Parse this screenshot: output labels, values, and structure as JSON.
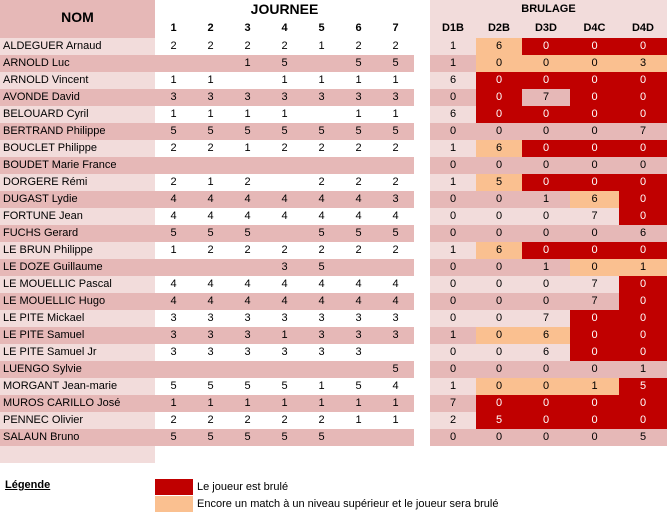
{
  "header": {
    "nom": "NOM",
    "journee": "JOURNEE",
    "brulage": "BRULAGE",
    "journee_cols": [
      "1",
      "2",
      "3",
      "4",
      "5",
      "6",
      "7"
    ],
    "brulage_cols": [
      "D1B",
      "D2B",
      "D3D",
      "D4C",
      "D4D"
    ]
  },
  "players": [
    {
      "name": "ALDEGUER Arnaud",
      "j": [
        "2",
        "2",
        "2",
        "2",
        "1",
        "2",
        "2"
      ],
      "b": [
        "1",
        "6",
        "0",
        "0",
        "0"
      ],
      "s": [
        "",
        "w",
        "b",
        "b",
        "b"
      ]
    },
    {
      "name": "ARNOLD Luc",
      "j": [
        "",
        "",
        "1",
        "5",
        "",
        "5",
        "5"
      ],
      "b": [
        "1",
        "0",
        "0",
        "0",
        "3"
      ],
      "s": [
        "",
        "w",
        "w",
        "w",
        "w"
      ]
    },
    {
      "name": "ARNOLD Vincent",
      "j": [
        "1",
        "1",
        "",
        "1",
        "1",
        "1",
        "1"
      ],
      "b": [
        "6",
        "0",
        "0",
        "0",
        "0"
      ],
      "s": [
        "",
        "b",
        "b",
        "b",
        "b"
      ]
    },
    {
      "name": "AVONDE David",
      "j": [
        "3",
        "3",
        "3",
        "3",
        "3",
        "3",
        "3"
      ],
      "b": [
        "0",
        "0",
        "7",
        "0",
        "0"
      ],
      "s": [
        "",
        "b",
        "",
        "b",
        "b"
      ]
    },
    {
      "name": "BELOUARD Cyril",
      "j": [
        "1",
        "1",
        "1",
        "1",
        "",
        "1",
        "1"
      ],
      "b": [
        "6",
        "0",
        "0",
        "0",
        "0"
      ],
      "s": [
        "",
        "b",
        "b",
        "b",
        "b"
      ]
    },
    {
      "name": "BERTRAND Philippe",
      "j": [
        "5",
        "5",
        "5",
        "5",
        "5",
        "5",
        "5"
      ],
      "b": [
        "0",
        "0",
        "0",
        "0",
        "7"
      ],
      "s": [
        "",
        "",
        "",
        "",
        ""
      ]
    },
    {
      "name": "BOUCLET Philippe",
      "j": [
        "2",
        "2",
        "1",
        "2",
        "2",
        "2",
        "2"
      ],
      "b": [
        "1",
        "6",
        "0",
        "0",
        "0"
      ],
      "s": [
        "",
        "w",
        "b",
        "b",
        "b"
      ]
    },
    {
      "name": "BOUDET Marie France",
      "j": [
        "",
        "",
        "",
        "",
        "",
        "",
        ""
      ],
      "b": [
        "0",
        "0",
        "0",
        "0",
        "0"
      ],
      "s": [
        "",
        "",
        "",
        "",
        ""
      ]
    },
    {
      "name": "DORGERE Rémi",
      "j": [
        "2",
        "1",
        "2",
        "",
        "2",
        "2",
        "2"
      ],
      "b": [
        "1",
        "5",
        "0",
        "0",
        "0"
      ],
      "s": [
        "",
        "w",
        "b",
        "b",
        "b"
      ]
    },
    {
      "name": "DUGAST Lydie",
      "j": [
        "4",
        "4",
        "4",
        "4",
        "4",
        "4",
        "3"
      ],
      "b": [
        "0",
        "0",
        "1",
        "6",
        "0"
      ],
      "s": [
        "",
        "",
        "",
        "w",
        "b"
      ]
    },
    {
      "name": "FORTUNE Jean",
      "j": [
        "4",
        "4",
        "4",
        "4",
        "4",
        "4",
        "4"
      ],
      "b": [
        "0",
        "0",
        "0",
        "7",
        "0"
      ],
      "s": [
        "",
        "",
        "",
        "",
        "b"
      ]
    },
    {
      "name": "FUCHS Gerard",
      "j": [
        "5",
        "5",
        "5",
        "",
        "5",
        "5",
        "5"
      ],
      "b": [
        "0",
        "0",
        "0",
        "0",
        "6"
      ],
      "s": [
        "",
        "",
        "",
        "",
        ""
      ]
    },
    {
      "name": "LE BRUN Philippe",
      "j": [
        "1",
        "2",
        "2",
        "2",
        "2",
        "2",
        "2"
      ],
      "b": [
        "1",
        "6",
        "0",
        "0",
        "0"
      ],
      "s": [
        "",
        "w",
        "b",
        "b",
        "b"
      ]
    },
    {
      "name": "LE DOZE Guillaume",
      "j": [
        "",
        "",
        "",
        "3",
        "5",
        "",
        ""
      ],
      "b": [
        "0",
        "0",
        "1",
        "0",
        "1"
      ],
      "s": [
        "",
        "",
        "",
        "w",
        "w"
      ]
    },
    {
      "name": "LE MOUELLIC Pascal",
      "j": [
        "4",
        "4",
        "4",
        "4",
        "4",
        "4",
        "4"
      ],
      "b": [
        "0",
        "0",
        "0",
        "7",
        "0"
      ],
      "s": [
        "",
        "",
        "",
        "",
        "b"
      ]
    },
    {
      "name": "LE MOUELLIC Hugo",
      "j": [
        "4",
        "4",
        "4",
        "4",
        "4",
        "4",
        "4"
      ],
      "b": [
        "0",
        "0",
        "0",
        "7",
        "0"
      ],
      "s": [
        "",
        "",
        "",
        "",
        "b"
      ]
    },
    {
      "name": "LE PITE Mickael",
      "j": [
        "3",
        "3",
        "3",
        "3",
        "3",
        "3",
        "3"
      ],
      "b": [
        "0",
        "0",
        "7",
        "0",
        "0"
      ],
      "s": [
        "",
        "",
        "",
        "b",
        "b"
      ]
    },
    {
      "name": "LE PITE Samuel",
      "j": [
        "3",
        "3",
        "3",
        "1",
        "3",
        "3",
        "3"
      ],
      "b": [
        "1",
        "0",
        "6",
        "0",
        "0"
      ],
      "s": [
        "",
        "w",
        "w",
        "b",
        "b"
      ]
    },
    {
      "name": "LE PITE Samuel Jr",
      "j": [
        "3",
        "3",
        "3",
        "3",
        "3",
        "3",
        ""
      ],
      "b": [
        "0",
        "0",
        "6",
        "0",
        "0"
      ],
      "s": [
        "",
        "",
        "",
        "b",
        "b"
      ]
    },
    {
      "name": "LUENGO Sylvie",
      "j": [
        "",
        "",
        "",
        "",
        "",
        "",
        "5"
      ],
      "b": [
        "0",
        "0",
        "0",
        "0",
        "1"
      ],
      "s": [
        "",
        "",
        "",
        "",
        ""
      ]
    },
    {
      "name": "MORGANT Jean-marie",
      "j": [
        "5",
        "5",
        "5",
        "5",
        "1",
        "5",
        "4"
      ],
      "b": [
        "1",
        "0",
        "0",
        "1",
        "5"
      ],
      "s": [
        "",
        "w",
        "w",
        "w",
        "b"
      ]
    },
    {
      "name": "MUROS CARILLO José",
      "j": [
        "1",
        "1",
        "1",
        "1",
        "1",
        "1",
        "1"
      ],
      "b": [
        "7",
        "0",
        "0",
        "0",
        "0"
      ],
      "s": [
        "",
        "b",
        "b",
        "b",
        "b"
      ]
    },
    {
      "name": "PENNEC Olivier",
      "j": [
        "2",
        "2",
        "2",
        "2",
        "2",
        "1",
        "1"
      ],
      "b": [
        "2",
        "5",
        "0",
        "0",
        "0"
      ],
      "s": [
        "",
        "b",
        "b",
        "b",
        "b"
      ]
    },
    {
      "name": "SALAUN Bruno",
      "j": [
        "5",
        "5",
        "5",
        "5",
        "5",
        "",
        ""
      ],
      "b": [
        "0",
        "0",
        "0",
        "0",
        "5"
      ],
      "s": [
        "",
        "",
        "",
        "",
        ""
      ]
    }
  ],
  "legend": {
    "title": "Légende",
    "burned": "Le joueur est brulé",
    "warning": "Encore un match à un niveau supérieur et le joueur sera brulé",
    "burned_color": "#c00000",
    "warning_color": "#fac090"
  }
}
